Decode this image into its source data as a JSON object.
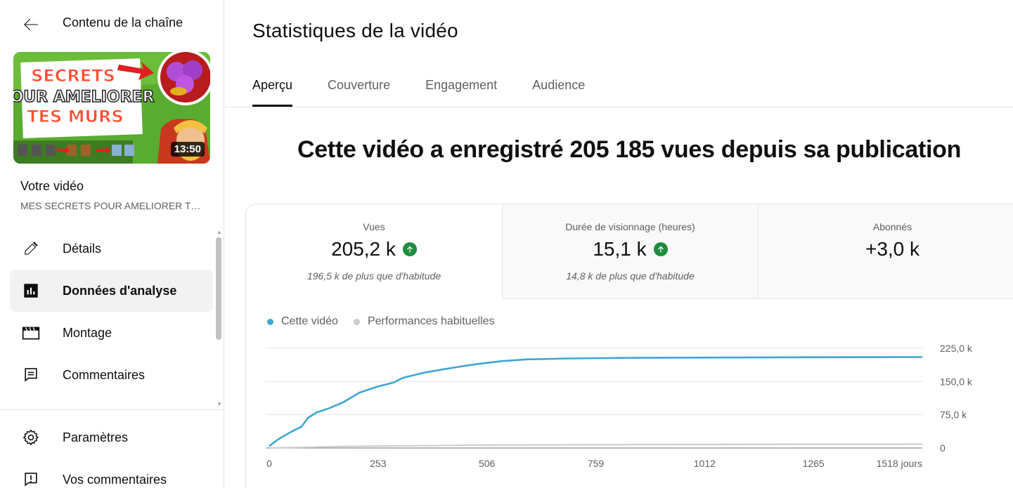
{
  "sidebar": {
    "header_title": "Contenu de la chaîne",
    "thumbnail": {
      "text_lines": [
        "SECRETS",
        "POUR AMELIORER",
        "TES MURS"
      ],
      "duration": "13:50"
    },
    "your_video_label": "Votre vidéo",
    "video_title": "MES SECRETS POUR AMELIORER TES MURS",
    "items": [
      {
        "label": "Détails",
        "icon": "pencil-icon",
        "active": false
      },
      {
        "label": "Données d'analyse",
        "icon": "analytics-icon",
        "active": true
      },
      {
        "label": "Montage",
        "icon": "clapperboard-icon",
        "active": false
      },
      {
        "label": "Commentaires",
        "icon": "comment-icon",
        "active": false
      }
    ],
    "bottom_items": [
      {
        "label": "Paramètres",
        "icon": "gear-icon"
      },
      {
        "label": "Vos commentaires",
        "icon": "feedback-icon"
      }
    ]
  },
  "main": {
    "title": "Statistiques de la vidéo",
    "tabs": [
      {
        "label": "Aperçu",
        "active": true
      },
      {
        "label": "Couverture",
        "active": false
      },
      {
        "label": "Engagement",
        "active": false
      },
      {
        "label": "Audience",
        "active": false
      }
    ],
    "headline": "Cette vidéo a enregistré 205 185 vues depuis sa publication",
    "metrics": [
      {
        "label": "Vues",
        "value": "205,2 k",
        "up": true,
        "note": "196,5 k de plus que d'habitude"
      },
      {
        "label": "Durée de visionnage (heures)",
        "value": "15,1 k",
        "up": true,
        "note": "14,8 k de plus que d'habitude"
      },
      {
        "label": "Abonnés",
        "value": "+3,0 k",
        "up": false,
        "note": ""
      }
    ],
    "legend": [
      {
        "label": "Cette vidéo",
        "color": "#3ea6d2"
      },
      {
        "label": "Performances habituelles",
        "color": "#cccccc"
      }
    ]
  },
  "colors": {
    "accent_line": "#3ea6d2",
    "typical_line": "#cccccc",
    "up_green": "#1e8e3e"
  },
  "chart_data": {
    "type": "line",
    "title": "",
    "xlabel": "",
    "ylabel": "",
    "x_ticks": [
      "0",
      "253",
      "506",
      "759",
      "1012",
      "1265",
      "1518 jours"
    ],
    "y_ticks": [
      "0",
      "75,0 k",
      "150,0 k",
      "225,0 k"
    ],
    "xlim": [
      0,
      1518
    ],
    "ylim": [
      0,
      225000
    ],
    "series": [
      {
        "name": "Cette vidéo",
        "x": [
          0,
          10,
          25,
          50,
          75,
          90,
          110,
          140,
          170,
          210,
          250,
          290,
          310,
          360,
          420,
          480,
          540,
          600,
          700,
          850,
          1000,
          1200,
          1518
        ],
        "y": [
          4000,
          12000,
          22000,
          36000,
          48000,
          68000,
          80000,
          90000,
          102000,
          125000,
          138000,
          148000,
          158000,
          170000,
          180000,
          189000,
          196000,
          200000,
          202000,
          203500,
          204000,
          204500,
          205185
        ]
      },
      {
        "name": "Performances habituelles",
        "x": [
          0,
          200,
          500,
          1000,
          1518
        ],
        "y": [
          0,
          4000,
          6500,
          8000,
          8700
        ]
      }
    ],
    "grid": true,
    "legend_position": "top-left"
  }
}
